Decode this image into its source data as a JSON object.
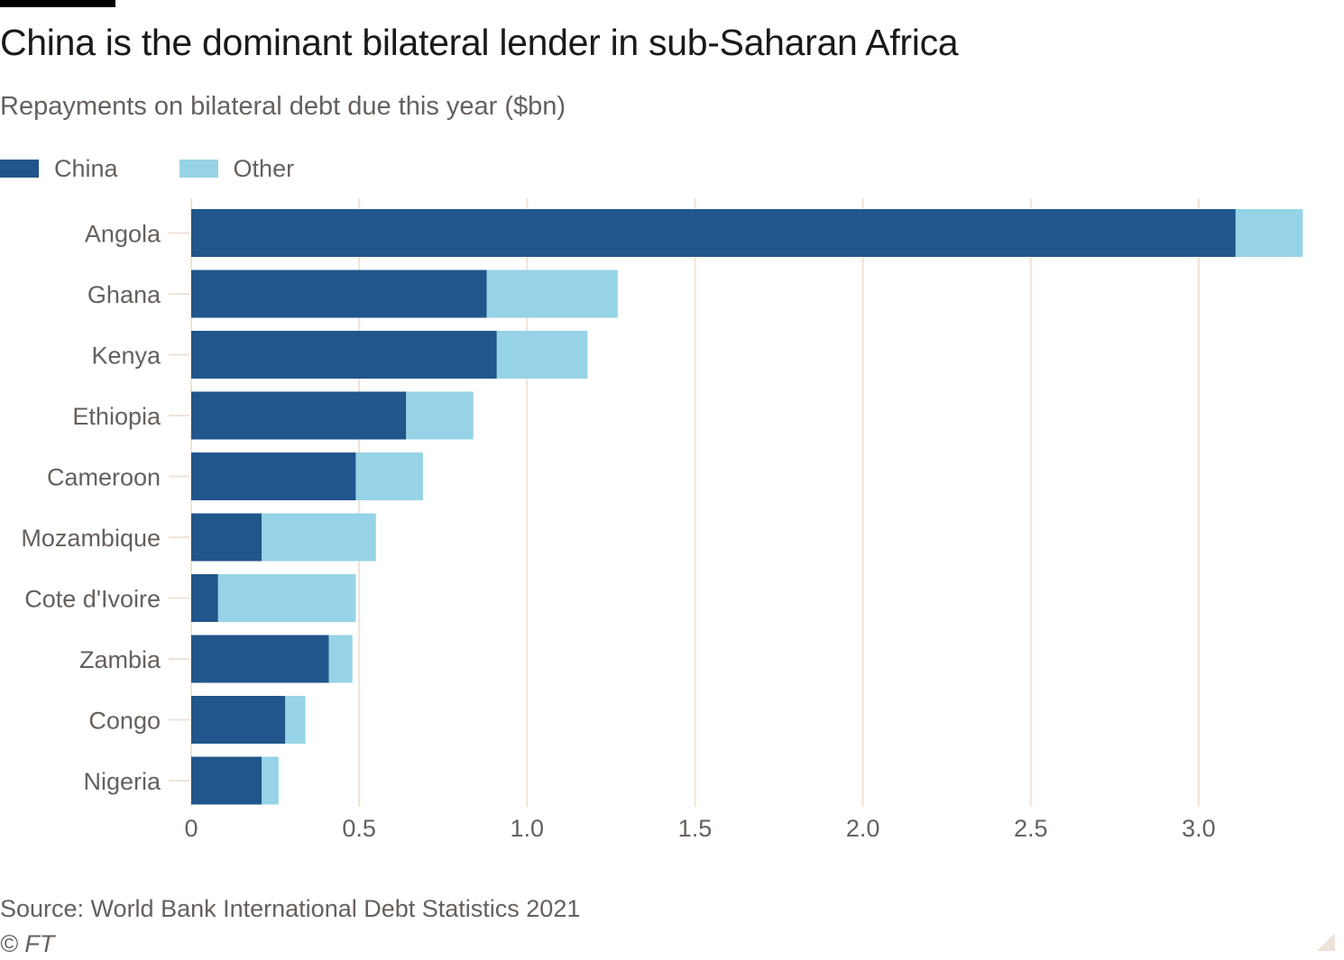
{
  "chart_data": {
    "type": "bar",
    "orientation": "horizontal",
    "stacked": true,
    "title": "China is the dominant bilateral lender in sub-Saharan Africa",
    "subtitle": "Repayments on bilateral debt due this year ($bn)",
    "xlabel": "",
    "ylabel": "",
    "categories": [
      "Angola",
      "Ghana",
      "Kenya",
      "Ethiopia",
      "Cameroon",
      "Mozambique",
      "Cote d'Ivoire",
      "Zambia",
      "Congo",
      "Nigeria"
    ],
    "series": [
      {
        "name": "China",
        "color": "#20568b",
        "values": [
          3.11,
          0.88,
          0.91,
          0.64,
          0.49,
          0.21,
          0.08,
          0.41,
          0.28,
          0.21
        ]
      },
      {
        "name": "Other",
        "color": "#96d3e6",
        "values": [
          0.2,
          0.39,
          0.27,
          0.2,
          0.2,
          0.34,
          0.41,
          0.07,
          0.06,
          0.05
        ]
      }
    ],
    "xlim": [
      0,
      3.3
    ],
    "xticks": [
      0,
      0.5,
      1.0,
      1.5,
      2.0,
      2.5,
      3.0
    ],
    "xtick_labels": [
      "0",
      "0.5",
      "1.0",
      "1.5",
      "2.0",
      "2.5",
      "3.0"
    ],
    "grid": true,
    "legend_position": "top-left",
    "source": "Source: World Bank International Debt Statistics 2021",
    "copyright": "© FT"
  },
  "colors": {
    "grid": "#eee3d9",
    "tick_text": "#66605c",
    "title_text": "#1a1a1a"
  }
}
